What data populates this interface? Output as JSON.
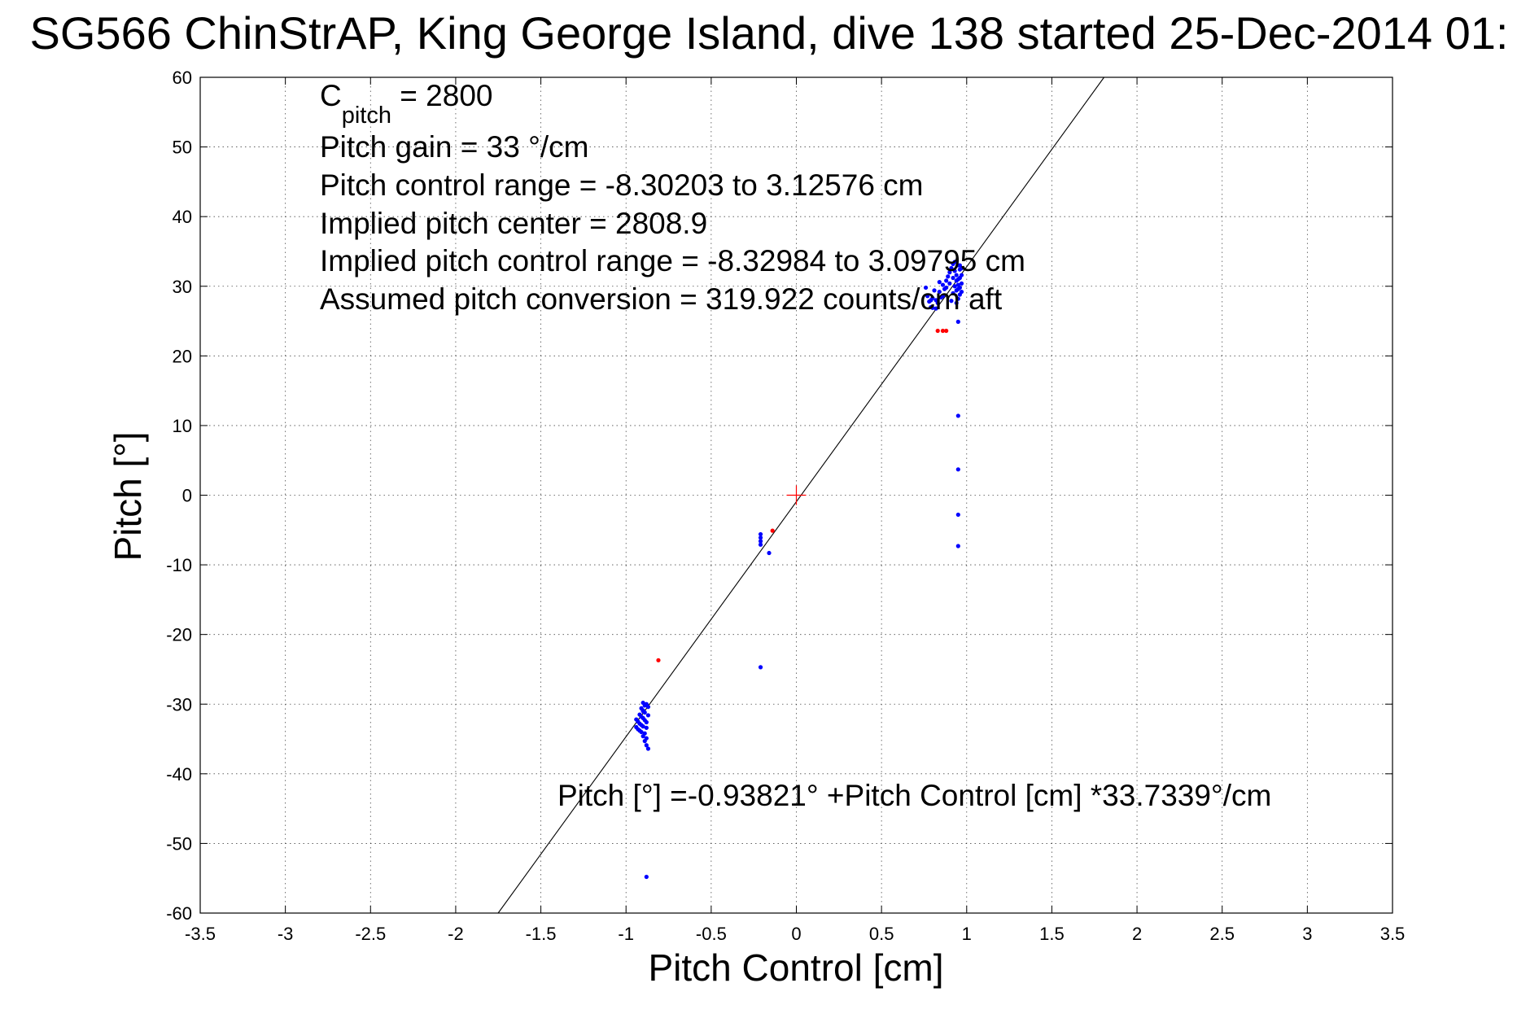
{
  "chart_data": {
    "type": "scatter",
    "title": "SG566 ChinStrAP, King George Island, dive 138 started 25-Dec-2014 01:",
    "xlabel": "Pitch Control [cm]",
    "ylabel": "Pitch [°]",
    "xlim": [
      -3.5,
      3.5
    ],
    "ylim": [
      -60,
      60
    ],
    "xticks": [
      "-3.5",
      "-3",
      "-2.5",
      "-2",
      "-1.5",
      "-1",
      "-0.5",
      "0",
      "0.5",
      "1",
      "1.5",
      "2",
      "2.5",
      "3",
      "3.5"
    ],
    "yticks": [
      "60",
      "50",
      "40",
      "30",
      "20",
      "10",
      "0",
      "-10",
      "-20",
      "-30",
      "-40",
      "-50",
      "-60"
    ],
    "grid": true,
    "annotations": {
      "cpitch_main": "C",
      "cpitch_sub": "pitch",
      "cpitch_value": " = 2800",
      "lines": [
        "Pitch gain = 33 °/cm",
        "Pitch control range = -8.30203 to 3.12576 cm",
        "Implied pitch center = 2808.9",
        "Implied pitch control range = -8.32984 to 3.09795 cm",
        "Assumed pitch conversion = 319.922 counts/cm aft"
      ],
      "fit_equation": "Pitch [°] =-0.93821° +Pitch Control [cm] *33.7339°/cm"
    },
    "fit_line": {
      "intercept": -0.93821,
      "slope": 33.7339,
      "color": "#000000"
    },
    "center_marker": {
      "x": 0,
      "y": 0,
      "color": "#ff0000"
    },
    "series": [
      {
        "color": "#0000ff",
        "points": [
          [
            -0.9,
            -29.8
          ],
          [
            -0.89,
            -30.2
          ],
          [
            -0.88,
            -30.0
          ],
          [
            -0.91,
            -30.6
          ],
          [
            -0.9,
            -31.0
          ],
          [
            -0.89,
            -31.2
          ],
          [
            -0.92,
            -31.5
          ],
          [
            -0.91,
            -31.8
          ],
          [
            -0.9,
            -32.0
          ],
          [
            -0.89,
            -32.3
          ],
          [
            -0.93,
            -32.5
          ],
          [
            -0.92,
            -32.8
          ],
          [
            -0.91,
            -33.0
          ],
          [
            -0.9,
            -33.2
          ],
          [
            -0.88,
            -33.4
          ],
          [
            -0.93,
            -33.6
          ],
          [
            -0.92,
            -33.8
          ],
          [
            -0.91,
            -34.0
          ],
          [
            -0.89,
            -34.2
          ],
          [
            -0.9,
            -34.6
          ],
          [
            -0.88,
            -34.9
          ],
          [
            -0.89,
            -35.3
          ],
          [
            -0.88,
            -35.9
          ],
          [
            -0.87,
            -36.4
          ],
          [
            -0.94,
            -32.2
          ],
          [
            -0.94,
            -33.3
          ],
          [
            -0.87,
            -31.6
          ],
          [
            -0.87,
            -30.4
          ],
          [
            -0.88,
            -32.6
          ],
          [
            -0.9,
            -30.9
          ],
          [
            -0.88,
            -54.8
          ],
          [
            -0.21,
            -5.6
          ],
          [
            -0.21,
            -6.1
          ],
          [
            -0.21,
            -6.6
          ],
          [
            -0.21,
            -7.1
          ],
          [
            -0.16,
            -8.3
          ],
          [
            -0.21,
            -24.7
          ],
          [
            0.95,
            24.9
          ],
          [
            0.95,
            11.4
          ],
          [
            0.95,
            3.7
          ],
          [
            0.95,
            -2.8
          ],
          [
            0.95,
            -7.3
          ],
          [
            0.76,
            29.8
          ],
          [
            0.77,
            28.6
          ],
          [
            0.78,
            27.8
          ],
          [
            0.79,
            27.0
          ],
          [
            0.8,
            26.9
          ],
          [
            0.8,
            28.3
          ],
          [
            0.81,
            29.4
          ],
          [
            0.82,
            28.0
          ],
          [
            0.83,
            27.6
          ],
          [
            0.84,
            29.2
          ],
          [
            0.85,
            28.4
          ],
          [
            0.86,
            30.2
          ],
          [
            0.87,
            29.6
          ],
          [
            0.88,
            30.8
          ],
          [
            0.89,
            31.4
          ],
          [
            0.9,
            32.0
          ],
          [
            0.91,
            32.6
          ],
          [
            0.92,
            33.2
          ],
          [
            0.92,
            31.2
          ],
          [
            0.93,
            30.0
          ],
          [
            0.93,
            32.2
          ],
          [
            0.94,
            31.6
          ],
          [
            0.94,
            29.4
          ],
          [
            0.95,
            33.0
          ],
          [
            0.95,
            31.0
          ],
          [
            0.95,
            30.2
          ],
          [
            0.96,
            32.4
          ],
          [
            0.96,
            31.2
          ],
          [
            0.96,
            29.8
          ],
          [
            0.96,
            28.8
          ],
          [
            0.97,
            31.6
          ],
          [
            0.97,
            30.4
          ],
          [
            0.97,
            29.2
          ],
          [
            0.95,
            28.2
          ],
          [
            0.94,
            27.6
          ],
          [
            0.92,
            29.0
          ],
          [
            0.9,
            30.4
          ],
          [
            0.88,
            29.8
          ],
          [
            0.86,
            28.6
          ],
          [
            0.79,
            28.0
          ],
          [
            0.82,
            26.8
          ],
          [
            0.84,
            30.6
          ],
          [
            0.91,
            27.9
          ],
          [
            0.93,
            33.5
          ],
          [
            0.96,
            33.0
          ],
          [
            0.97,
            32.6
          ],
          [
            0.94,
            30.8
          ],
          [
            0.95,
            29.6
          ]
        ]
      },
      {
        "color": "#ff0000",
        "points": [
          [
            -0.81,
            -23.7
          ],
          [
            -0.14,
            -5.1
          ],
          [
            0.83,
            23.6
          ],
          [
            0.86,
            23.6
          ],
          [
            0.88,
            23.6
          ]
        ]
      }
    ]
  }
}
